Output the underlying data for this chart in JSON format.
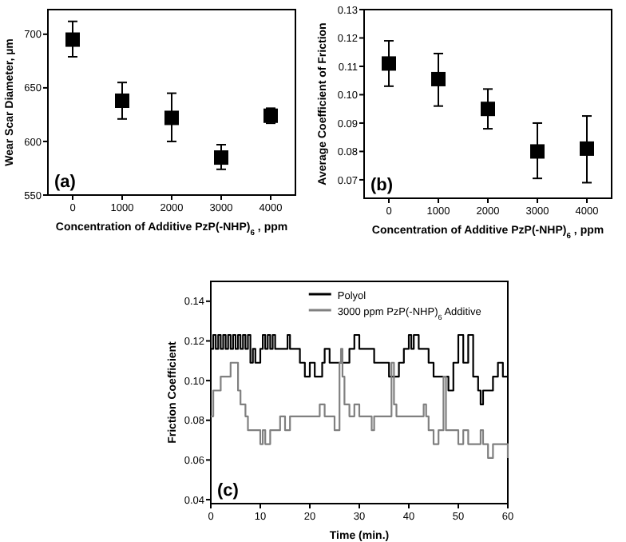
{
  "chart_data": [
    {
      "type": "scatter",
      "xlabel": "Concentration of Additive PzP(-NHP)$_{6}$ , ppm",
      "ylabel": "Wear Scar Diameter, µm",
      "annotations": [
        "(a)"
      ],
      "x": [
        0,
        1000,
        2000,
        3000,
        4000
      ],
      "series": [
        {
          "color": "#000000",
          "values": [
            695,
            638,
            622,
            585,
            624
          ],
          "errors": [
            [
              679,
              712
            ],
            [
              621,
              655
            ],
            [
              600,
              645
            ],
            [
              574,
              597
            ],
            [
              617,
              631
            ]
          ]
        }
      ],
      "xlim": [
        -500,
        4500
      ],
      "xticks": [
        0,
        1000,
        2000,
        3000,
        4000
      ],
      "ylim": [
        550,
        723
      ],
      "yticks": [
        550,
        600,
        650,
        700
      ],
      "marker": "square",
      "grid": false
    },
    {
      "type": "scatter",
      "xlabel": "Concentration of Additive PzP(-NHP)$_{6}$ , ppm",
      "ylabel": "Average Coefficient of Friction",
      "annotations": [
        "(b)"
      ],
      "x": [
        0,
        1000,
        2000,
        3000,
        4000
      ],
      "series": [
        {
          "color": "#000000",
          "values": [
            0.111,
            0.1055,
            0.095,
            0.08,
            0.081
          ],
          "errors": [
            [
              0.103,
              0.119
            ],
            [
              0.096,
              0.1145
            ],
            [
              0.088,
              0.102
            ],
            [
              0.0705,
              0.09
            ],
            [
              0.069,
              0.0925
            ]
          ]
        }
      ],
      "xlim": [
        -500,
        4500
      ],
      "xticks": [
        0,
        1000,
        2000,
        3000,
        4000
      ],
      "ylim": [
        0.0635,
        0.13
      ],
      "yticks": [
        0.07,
        0.08,
        0.09,
        {
          "value": 0.1,
          "label": "0.10"
        },
        0.11,
        0.12,
        0.13
      ],
      "marker": "square",
      "grid": false
    },
    {
      "type": "step",
      "xlabel": "Time (min.)",
      "ylabel": "Friction Coefficient",
      "annotations": [
        "(c)"
      ],
      "legend": "top right",
      "marker": "none",
      "grid": false,
      "xlim": [
        0,
        60
      ],
      "xticks": [
        0,
        10,
        20,
        30,
        40,
        50,
        60
      ],
      "ylim": [
        0.038,
        0.15
      ],
      "yticks": [
        0.04,
        0.06,
        0.08,
        {
          "value": 0.1,
          "label": "0.10"
        },
        0.12,
        0.14
      ],
      "series": [
        {
          "name": "Polyol",
          "color": "#000000",
          "x": [
            0,
            0.5,
            1,
            1.5,
            2,
            2.5,
            3,
            3.5,
            4,
            4.5,
            5,
            5.5,
            6,
            6.5,
            7,
            7.5,
            8,
            8.5,
            9,
            10,
            10.5,
            11,
            11.5,
            12,
            12.5,
            13,
            15,
            15.5,
            16,
            18,
            19,
            20,
            21,
            22.5,
            23,
            24,
            26,
            28,
            29,
            30,
            33,
            36,
            38,
            39,
            40,
            40.5,
            41,
            42,
            44,
            45,
            47,
            48,
            49,
            50,
            51,
            52,
            53,
            54,
            54.5,
            55,
            57,
            58,
            59,
            60
          ],
          "values": [
            0.116,
            0.123,
            0.116,
            0.123,
            0.116,
            0.123,
            0.116,
            0.123,
            0.116,
            0.123,
            0.116,
            0.123,
            0.116,
            0.123,
            0.116,
            0.123,
            0.109,
            0.116,
            0.109,
            0.116,
            0.123,
            0.116,
            0.123,
            0.116,
            0.123,
            0.116,
            0.116,
            0.123,
            0.116,
            0.109,
            0.102,
            0.109,
            0.102,
            0.109,
            0.116,
            0.109,
            0.109,
            0.116,
            0.123,
            0.116,
            0.109,
            0.102,
            0.109,
            0.116,
            0.123,
            0.116,
            0.123,
            0.116,
            0.109,
            0.102,
            0.102,
            0.095,
            0.109,
            0.123,
            0.109,
            0.123,
            0.102,
            0.095,
            0.088,
            0.095,
            0.102,
            0.109,
            0.102,
            0.102
          ]
        },
        {
          "name": "3000 ppm PzP(-NHP)$_{6}$ Additive",
          "color": "#808080",
          "x": [
            0,
            0.5,
            2,
            4,
            5.5,
            6,
            7,
            7.5,
            10,
            10.5,
            11,
            12,
            14,
            15,
            16,
            22,
            23,
            25,
            26,
            26.3,
            26.6,
            27,
            28,
            29,
            30,
            32.5,
            33,
            36,
            36.5,
            37,
            37.5,
            43,
            43.5,
            44,
            45,
            46,
            47,
            47.5,
            50,
            51,
            52,
            54.5,
            55,
            56,
            57,
            59,
            60
          ],
          "values": [
            0.082,
            0.095,
            0.102,
            0.109,
            0.095,
            0.088,
            0.082,
            0.075,
            0.068,
            0.075,
            0.068,
            0.075,
            0.082,
            0.075,
            0.082,
            0.088,
            0.082,
            0.075,
            0.109,
            0.116,
            0.102,
            0.088,
            0.082,
            0.088,
            0.082,
            0.075,
            0.082,
            0.082,
            0.109,
            0.088,
            0.082,
            0.088,
            0.082,
            0.075,
            0.068,
            0.075,
            0.102,
            0.075,
            0.068,
            0.075,
            0.068,
            0.075,
            0.068,
            0.061,
            0.068,
            0.068,
            0.061
          ]
        }
      ]
    }
  ]
}
